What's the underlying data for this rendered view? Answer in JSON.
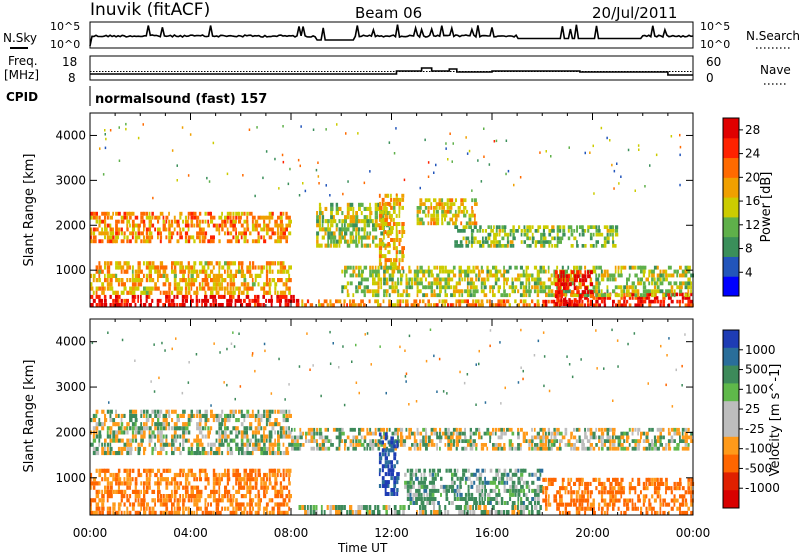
{
  "header": {
    "station": "Inuvik (fitACF)",
    "beam": "Beam 06",
    "date": "20/Jul/2011"
  },
  "top_panels": {
    "nsky": {
      "label": "N.Sky",
      "ticks": [
        "10^5",
        "10^0"
      ],
      "right_label": "N.Search",
      "right_ticks": [
        "10^5",
        "10^0"
      ]
    },
    "freq": {
      "label1": "Freq.",
      "label2": "[MHz]",
      "ticks": [
        "18",
        "8"
      ],
      "right_label": "Nave",
      "right_ticks": [
        "60",
        "0"
      ]
    },
    "cpid": {
      "label": "CPID",
      "value": "normalsound (fast) 157"
    }
  },
  "colors": {
    "power": [
      "#0000ff",
      "#2255bb",
      "#3a8f5a",
      "#5fb04a",
      "#cccc00",
      "#f0a000",
      "#ff6a00",
      "#ff2200",
      "#e00000"
    ],
    "velocity": [
      "#1e3cb4",
      "#2a6e9a",
      "#3d8a5a",
      "#5fb84a",
      "#bdbdbd",
      "#bdbdbd",
      "#ff9a1a",
      "#ff6600",
      "#e02000",
      "#d80000"
    ]
  },
  "chart_data": [
    {
      "type": "heatmap",
      "title": "",
      "xlabel": "Time UT",
      "ylabel": "Slant Range [km]",
      "x_ticks": [
        "00:00",
        "04:00",
        "08:00",
        "12:00",
        "16:00",
        "20:00",
        "00:00"
      ],
      "y_ticks": [
        "1000",
        "2000",
        "3000",
        "4000"
      ],
      "ylim": [
        180,
        4500
      ],
      "colorbar": {
        "label": "Power [dB]",
        "ticks": [
          "4",
          "8",
          "12",
          "16",
          "20",
          "24",
          "28"
        ],
        "range": [
          0,
          30
        ]
      },
      "bands": [
        {
          "t0": 0.0,
          "t1": 8.3,
          "r0": 180,
          "r1": 450,
          "level": 28
        },
        {
          "t0": 8.3,
          "t1": 18.0,
          "r0": 180,
          "r1": 350,
          "level": 20
        },
        {
          "t0": 18.0,
          "t1": 24.0,
          "r0": 180,
          "r1": 500,
          "level": 26
        },
        {
          "t0": 0.0,
          "t1": 8.0,
          "r0": 450,
          "r1": 1200,
          "level": 18
        },
        {
          "t0": 0.0,
          "t1": 8.0,
          "r0": 1600,
          "r1": 2300,
          "level": 20
        },
        {
          "t0": 9.0,
          "t1": 12.0,
          "r0": 1500,
          "r1": 2500,
          "level": 14
        },
        {
          "t0": 11.5,
          "t1": 12.5,
          "r0": 1000,
          "r1": 2700,
          "level": 18
        },
        {
          "t0": 13.0,
          "t1": 15.5,
          "r0": 2000,
          "r1": 2600,
          "level": 16
        },
        {
          "t0": 14.5,
          "t1": 21.0,
          "r0": 1500,
          "r1": 2000,
          "level": 12
        },
        {
          "t0": 10.0,
          "t1": 24.0,
          "r0": 400,
          "r1": 1100,
          "level": 14
        },
        {
          "t0": 18.5,
          "t1": 20.0,
          "r0": 200,
          "r1": 1000,
          "level": 28
        }
      ]
    },
    {
      "type": "heatmap",
      "title": "",
      "xlabel": "Time UT",
      "ylabel": "Slant Range [km]",
      "x_ticks": [
        "00:00",
        "04:00",
        "08:00",
        "12:00",
        "16:00",
        "20:00",
        "00:00"
      ],
      "y_ticks": [
        "1000",
        "2000",
        "3000",
        "4000"
      ],
      "ylim": [
        180,
        4500
      ],
      "colorbar": {
        "label": "Velocity [m s^-1]",
        "ticks": [
          "1000",
          "500",
          "100",
          "25",
          "-25",
          "-100",
          "-500",
          "-1000"
        ]
      },
      "bands": [
        {
          "t0": 0.0,
          "t1": 8.0,
          "r0": 180,
          "r1": 1200,
          "level": -300
        },
        {
          "t0": 0.0,
          "t1": 8.0,
          "r0": 1500,
          "r1": 2500,
          "level": 0
        },
        {
          "t0": 8.0,
          "t1": 24.0,
          "r0": 1600,
          "r1": 2100,
          "level": 0
        },
        {
          "t0": 11.5,
          "t1": 12.3,
          "r0": 600,
          "r1": 2000,
          "level": 800
        },
        {
          "t0": 12.5,
          "t1": 18.0,
          "r0": 400,
          "r1": 1200,
          "level": 150
        },
        {
          "t0": 18.0,
          "t1": 24.0,
          "r0": 180,
          "r1": 1000,
          "level": -400
        },
        {
          "t0": 8.3,
          "t1": 18.0,
          "r0": 180,
          "r1": 400,
          "level": 50
        }
      ]
    }
  ]
}
